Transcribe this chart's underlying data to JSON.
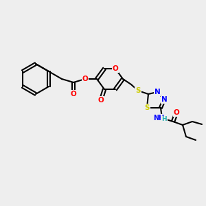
{
  "bg_color": "#eeeeee",
  "bond_color": "#000000",
  "bond_width": 1.5,
  "atom_colors": {
    "O": "#ff0000",
    "N": "#0000ff",
    "S": "#cccc00",
    "H": "#20b0b0",
    "C": "#000000"
  },
  "font_size": 7.5
}
